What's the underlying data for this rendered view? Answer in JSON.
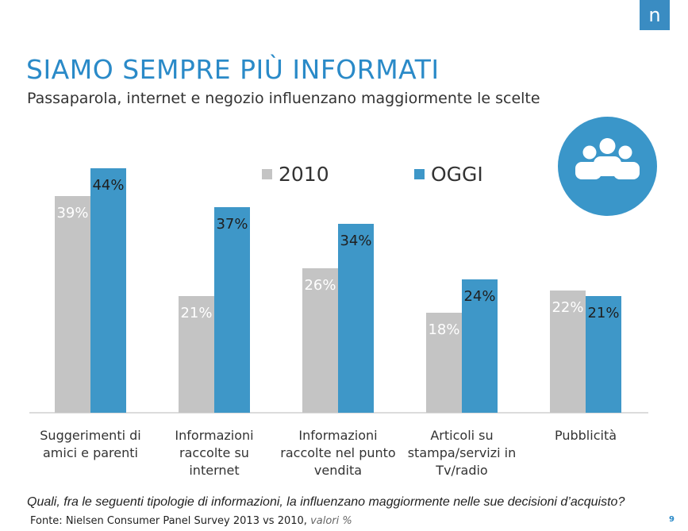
{
  "logo": {
    "letter": "n"
  },
  "title": "SIAMO SEMPRE PIÙ INFORMATI",
  "subtitle": "Passaparola, internet e negozio influenzano maggiormente le scelte",
  "question": "Quali, fra le seguenti tipologie di informazioni, la influenzano maggiormente nelle sue decisioni d’acquisto?",
  "source": {
    "main": "Fonte: Nielsen Consumer Panel Survey 2013 vs 2010,",
    "note": "valori %"
  },
  "page_number": "9",
  "icon": "people-group-icon",
  "colors": {
    "series_2010": "#c4c4c4",
    "series_oggi": "#3e97c8",
    "title": "#2a8ac8",
    "icon_bg": "#3a96c9"
  },
  "chart_data": {
    "type": "bar",
    "categories": [
      [
        "Suggerimenti di",
        "amici e parenti"
      ],
      [
        "Informazioni",
        "raccolte su",
        "internet"
      ],
      [
        "Informazioni",
        "raccolte nel punto",
        "vendita"
      ],
      [
        "Articoli su",
        "stampa/servizi in",
        "Tv/radio"
      ],
      [
        "Pubblicità"
      ]
    ],
    "series": [
      {
        "name": "2010",
        "values": [
          39,
          21,
          26,
          18,
          22
        ],
        "labels": [
          "39%",
          "21%",
          "26%",
          "18%",
          "22%"
        ]
      },
      {
        "name": "OGGI",
        "values": [
          44,
          37,
          34,
          24,
          21
        ],
        "labels": [
          "44%",
          "37%",
          "34%",
          "24%",
          "21%"
        ]
      }
    ],
    "ylim": [
      0,
      44
    ],
    "legend": "top-center",
    "grid": false
  }
}
